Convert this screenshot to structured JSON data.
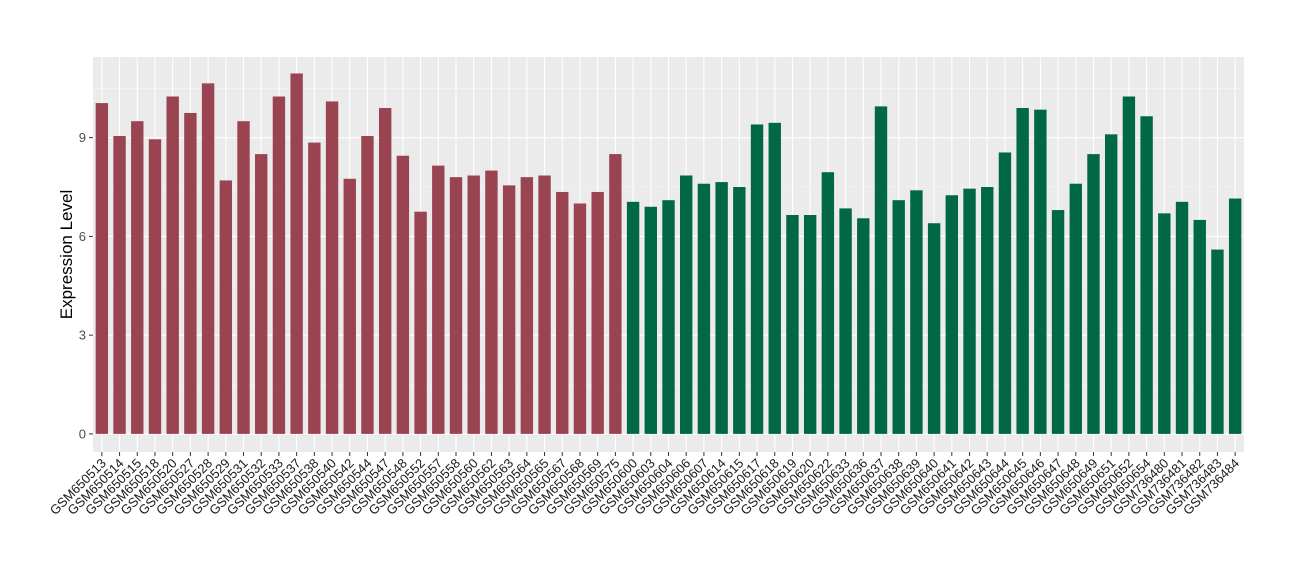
{
  "chart_data": {
    "type": "bar",
    "xlabel": "",
    "ylabel": "Expression Level",
    "ylim": [
      -0.55,
      11.45
    ],
    "yticks": [
      0,
      3,
      6,
      9
    ],
    "grid": true,
    "legend": "none",
    "colors": {
      "panel_background": "#EBEBEB",
      "grid_major": "#FFFFFF",
      "group_1": "#9B4451",
      "group_2": "#006845"
    },
    "categories": [
      "GSM650513",
      "GSM650514",
      "GSM650515",
      "GSM650518",
      "GSM650520",
      "GSM650527",
      "GSM650528",
      "GSM650529",
      "GSM650531",
      "GSM650532",
      "GSM650533",
      "GSM650537",
      "GSM650538",
      "GSM650540",
      "GSM650542",
      "GSM650544",
      "GSM650547",
      "GSM650548",
      "GSM650552",
      "GSM650557",
      "GSM650558",
      "GSM650560",
      "GSM650562",
      "GSM650563",
      "GSM650564",
      "GSM650565",
      "GSM650567",
      "GSM650568",
      "GSM650569",
      "GSM650575",
      "GSM650600",
      "GSM650603",
      "GSM650604",
      "GSM650606",
      "GSM650607",
      "GSM650614",
      "GSM650615",
      "GSM650617",
      "GSM650618",
      "GSM650619",
      "GSM650620",
      "GSM650622",
      "GSM650633",
      "GSM650636",
      "GSM650637",
      "GSM650638",
      "GSM650639",
      "GSM650640",
      "GSM650641",
      "GSM650642",
      "GSM650643",
      "GSM650644",
      "GSM650645",
      "GSM650646",
      "GSM650647",
      "GSM650648",
      "GSM650649",
      "GSM650651",
      "GSM650652",
      "GSM650654",
      "GSM736480",
      "GSM736481",
      "GSM736482",
      "GSM736483",
      "GSM736484"
    ],
    "values": [
      10.05,
      9.05,
      9.5,
      8.95,
      10.25,
      9.75,
      10.65,
      7.7,
      9.5,
      8.5,
      10.25,
      10.95,
      8.85,
      10.1,
      7.75,
      9.05,
      9.9,
      8.45,
      6.75,
      8.15,
      7.8,
      7.85,
      8.0,
      7.55,
      7.8,
      7.85,
      7.35,
      7.0,
      7.35,
      8.5,
      7.05,
      6.9,
      7.1,
      7.85,
      7.6,
      7.65,
      7.5,
      9.4,
      9.45,
      6.65,
      6.65,
      7.95,
      6.85,
      6.55,
      9.95,
      7.1,
      7.4,
      6.4,
      7.25,
      7.45,
      7.5,
      8.55,
      9.9,
      9.85,
      6.8,
      7.6,
      8.5,
      9.1,
      10.25,
      9.65,
      6.7,
      7.05,
      6.5,
      5.6,
      7.15
    ],
    "groups": [
      1,
      1,
      1,
      1,
      1,
      1,
      1,
      1,
      1,
      1,
      1,
      1,
      1,
      1,
      1,
      1,
      1,
      1,
      1,
      1,
      1,
      1,
      1,
      1,
      1,
      1,
      1,
      1,
      1,
      1,
      2,
      2,
      2,
      2,
      2,
      2,
      2,
      2,
      2,
      2,
      2,
      2,
      2,
      2,
      2,
      2,
      2,
      2,
      2,
      2,
      2,
      2,
      2,
      2,
      2,
      2,
      2,
      2,
      2,
      2,
      2,
      2,
      2,
      2,
      2
    ]
  }
}
